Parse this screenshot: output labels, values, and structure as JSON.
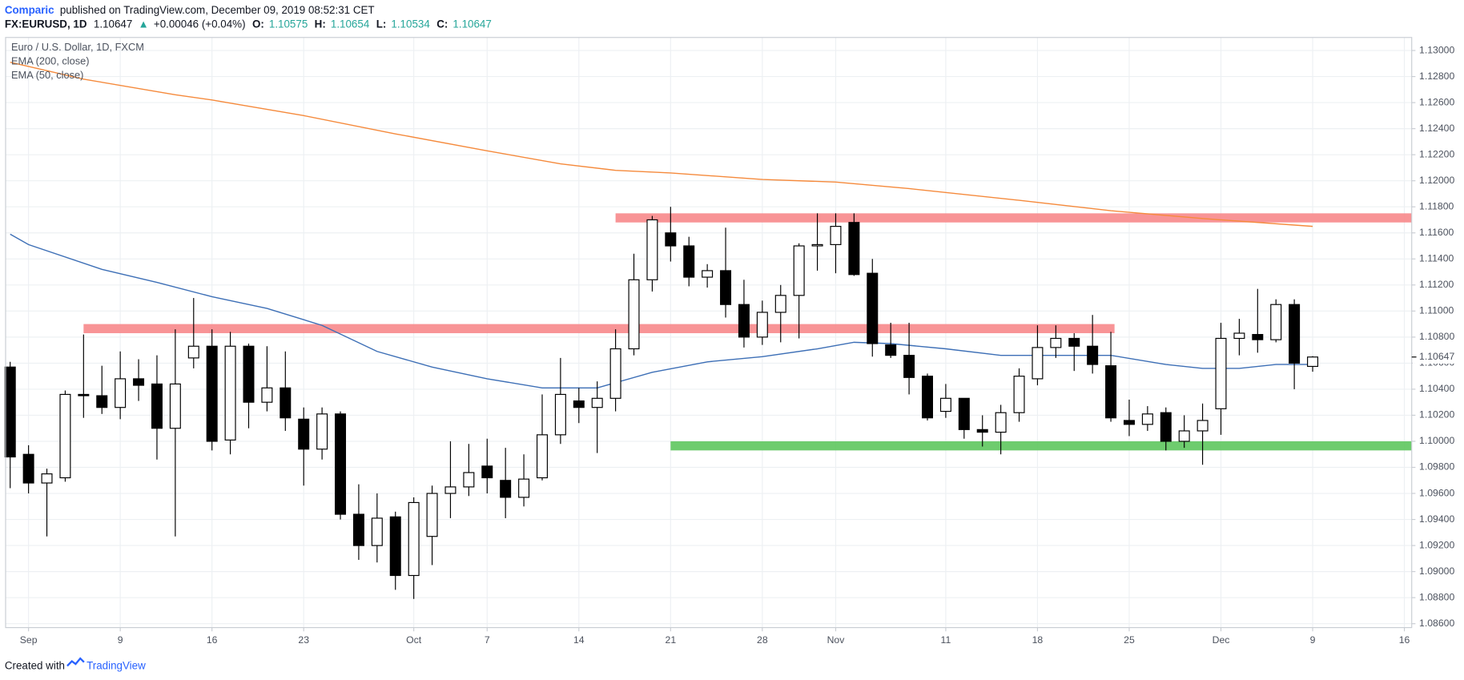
{
  "header": {
    "author": "Comparic",
    "published": "published on TradingView.com, December 09, 2019 08:52:31 CET",
    "symbol": "FX:EURUSD, 1D",
    "change_arrow": "▲",
    "change": "+0.00046 (+0.04%)",
    "open_label": "O:",
    "high_label": "H:",
    "low_label": "L:",
    "close_label": "C:"
  },
  "footer": {
    "created_with": "Created with",
    "brand": "TradingView"
  },
  "chart_data": {
    "type": "candlestick",
    "title": "Euro / U.S. Dollar, 1D, FXCM",
    "up_color": "#ffffff",
    "down_color": "#000000",
    "grid": true,
    "open": [
      1.1057,
      1.099,
      1.0968,
      1.0972,
      1.1036,
      1.1035,
      1.1026,
      1.1048,
      1.1044,
      1.101,
      1.1064,
      1.1073,
      1.1001,
      1.1073,
      1.103,
      1.1041,
      1.1017,
      1.0994,
      1.1021,
      1.0944,
      1.092,
      1.0942,
      1.0897,
      1.0927,
      1.096,
      1.0965,
      1.0981,
      1.097,
      1.0957,
      1.0972,
      1.1005,
      1.1031,
      1.1026,
      1.1033,
      1.1071,
      1.1124,
      1.116,
      1.115,
      1.1126,
      1.1131,
      1.1105,
      1.108,
      1.1099,
      1.1112,
      1.115,
      1.1151,
      1.1168,
      1.1129,
      1.1074,
      1.1066,
      1.105,
      1.1023,
      1.1033,
      1.1009,
      1.1007,
      1.1022,
      1.1048,
      1.1072,
      1.1079,
      1.1073,
      1.1058,
      1.1016,
      1.1013,
      1.1022,
      1.1,
      1.1008,
      1.1025,
      1.1079,
      1.1082,
      1.1078,
      1.1105,
      1.10575
    ],
    "high": [
      1.1061,
      1.0997,
      1.0979,
      1.1039,
      1.1082,
      1.1058,
      1.1069,
      1.1063,
      1.1066,
      1.1086,
      1.111,
      1.1086,
      1.1084,
      1.1075,
      1.1073,
      1.1069,
      1.1026,
      1.1026,
      1.1023,
      1.0967,
      1.096,
      1.0946,
      1.0957,
      1.0966,
      1.1,
      1.0998,
      1.1002,
      1.0995,
      1.099,
      1.1036,
      1.1064,
      1.1041,
      1.1046,
      1.1086,
      1.1144,
      1.1173,
      1.118,
      1.1157,
      1.1136,
      1.1164,
      1.1124,
      1.1108,
      1.112,
      1.1152,
      1.1175,
      1.1175,
      1.1175,
      1.114,
      1.1091,
      1.1091,
      1.1052,
      1.1044,
      1.1033,
      1.102,
      1.1028,
      1.1056,
      1.1089,
      1.1089,
      1.1083,
      1.1097,
      1.1084,
      1.1032,
      1.1027,
      1.1026,
      1.102,
      1.1029,
      1.1091,
      1.1094,
      1.1117,
      1.1109,
      1.1109,
      1.10654
    ],
    "low": [
      1.0964,
      1.096,
      1.0927,
      1.0969,
      1.1018,
      1.1021,
      1.1017,
      1.1031,
      1.0986,
      1.0927,
      1.1056,
      1.0993,
      1.099,
      1.101,
      1.1023,
      1.1008,
      1.0966,
      1.0986,
      1.094,
      1.0909,
      1.0907,
      1.0886,
      1.0879,
      1.0905,
      1.0941,
      1.0958,
      1.096,
      1.0941,
      1.095,
      1.097,
      1.0998,
      1.1014,
      1.0991,
      1.1023,
      1.1066,
      1.1115,
      1.1138,
      1.1119,
      1.1118,
      1.1095,
      1.1072,
      1.1074,
      1.1076,
      1.1079,
      1.1131,
      1.1129,
      1.1127,
      1.1065,
      1.1064,
      1.1036,
      1.1016,
      1.1018,
      1.1002,
      1.0996,
      1.099,
      1.1015,
      1.1043,
      1.1064,
      1.1054,
      1.1052,
      1.1015,
      1.1004,
      1.1008,
      1.0993,
      1.0995,
      1.0982,
      1.1005,
      1.1066,
      1.1068,
      1.1076,
      1.104,
      1.10534
    ],
    "close": [
      1.0988,
      1.0968,
      1.0975,
      1.1036,
      1.1035,
      1.1026,
      1.1048,
      1.1043,
      1.101,
      1.1044,
      1.1073,
      1.1,
      1.1073,
      1.103,
      1.1041,
      1.1018,
      1.0994,
      1.1021,
      1.0944,
      1.092,
      1.0941,
      1.0897,
      1.0953,
      1.096,
      1.0965,
      1.0976,
      1.0972,
      1.0957,
      1.0971,
      1.1005,
      1.1036,
      1.1026,
      1.1033,
      1.1071,
      1.1124,
      1.117,
      1.115,
      1.1126,
      1.1131,
      1.1105,
      1.108,
      1.1099,
      1.1112,
      1.115,
      1.1151,
      1.1165,
      1.1128,
      1.1075,
      1.1066,
      1.1049,
      1.1018,
      1.1033,
      1.1009,
      1.1007,
      1.1022,
      1.105,
      1.1072,
      1.1079,
      1.1073,
      1.1059,
      1.1018,
      1.1013,
      1.1021,
      1.1,
      1.1008,
      1.1016,
      1.1079,
      1.1083,
      1.1078,
      1.1105,
      1.106,
      1.10647
    ],
    "overlays": [
      {
        "name": "EMA (200, close)",
        "color": "#f58a3c",
        "x": [
          0,
          4,
          9,
          11,
          16,
          21,
          26,
          30,
          33,
          36,
          41,
          45,
          49,
          55,
          60,
          65,
          71
        ],
        "values": [
          1.1291,
          1.1278,
          1.1266,
          1.1262,
          1.125,
          1.1236,
          1.1223,
          1.1213,
          1.1208,
          1.1206,
          1.1201,
          1.1199,
          1.1194,
          1.1185,
          1.1177,
          1.1171,
          1.1165
        ]
      },
      {
        "name": "EMA (50, close)",
        "color": "#3d6fb6",
        "x": [
          0,
          1,
          5,
          8,
          11,
          14,
          17,
          20,
          23,
          26,
          29,
          32,
          35,
          38,
          41,
          44,
          46,
          48,
          51,
          54,
          57,
          60,
          63,
          65,
          67,
          69,
          71
        ],
        "values": [
          1.1159,
          1.1151,
          1.1132,
          1.1122,
          1.1111,
          1.1102,
          1.1089,
          1.1069,
          1.1057,
          1.1048,
          1.1041,
          1.1041,
          1.1053,
          1.1061,
          1.1065,
          1.1071,
          1.1076,
          1.1075,
          1.1071,
          1.1066,
          1.1066,
          1.1066,
          1.1059,
          1.1056,
          1.1056,
          1.1059,
          1.1059
        ]
      }
    ],
    "zones": [
      {
        "color": "#f7888b",
        "from": 33,
        "to": 76.4,
        "low": 1.1168,
        "high": 1.1175
      },
      {
        "color": "#f7888b",
        "from": 4,
        "to": 60.2,
        "low": 1.1083,
        "high": 1.109
      },
      {
        "color": "#5ec65e",
        "from": 36,
        "to": 76.4,
        "low": 1.0993,
        "high": 1.1
      }
    ],
    "xlim": [
      -0.25,
      76.4
    ],
    "xticks": [
      {
        "value": 1,
        "label": "Sep"
      },
      {
        "value": 6,
        "label": "9"
      },
      {
        "value": 11,
        "label": "16"
      },
      {
        "value": 16,
        "label": "23"
      },
      {
        "value": 22,
        "label": "Oct"
      },
      {
        "value": 26,
        "label": "7"
      },
      {
        "value": 31,
        "label": "14"
      },
      {
        "value": 36,
        "label": "21"
      },
      {
        "value": 41,
        "label": "28"
      },
      {
        "value": 45,
        "label": "Nov"
      },
      {
        "value": 51,
        "label": "11"
      },
      {
        "value": 56,
        "label": "18"
      },
      {
        "value": 61,
        "label": "25"
      },
      {
        "value": 66,
        "label": "Dec"
      },
      {
        "value": 71,
        "label": "9"
      },
      {
        "value": 76,
        "label": "16"
      }
    ],
    "ylim": [
      1.0857,
      1.131
    ],
    "yticks": [
      {
        "value": 1.086,
        "label": "1.08600"
      },
      {
        "value": 1.088,
        "label": "1.08800"
      },
      {
        "value": 1.09,
        "label": "1.09000"
      },
      {
        "value": 1.092,
        "label": "1.09200"
      },
      {
        "value": 1.094,
        "label": "1.09400"
      },
      {
        "value": 1.096,
        "label": "1.09600"
      },
      {
        "value": 1.098,
        "label": "1.09800"
      },
      {
        "value": 1.1,
        "label": "1.10000"
      },
      {
        "value": 1.102,
        "label": "1.10200"
      },
      {
        "value": 1.104,
        "label": "1.10400"
      },
      {
        "value": 1.106,
        "label": "1.10600"
      },
      {
        "value": 1.108,
        "label": "1.10800"
      },
      {
        "value": 1.11,
        "label": "1.11000"
      },
      {
        "value": 1.112,
        "label": "1.11200"
      },
      {
        "value": 1.114,
        "label": "1.11400"
      },
      {
        "value": 1.116,
        "label": "1.11600"
      },
      {
        "value": 1.118,
        "label": "1.11800"
      },
      {
        "value": 1.12,
        "label": "1.12000"
      },
      {
        "value": 1.122,
        "label": "1.12200"
      },
      {
        "value": 1.124,
        "label": "1.12400"
      },
      {
        "value": 1.126,
        "label": "1.12600"
      },
      {
        "value": 1.128,
        "label": "1.12800"
      },
      {
        "value": 1.13,
        "label": "1.13000"
      }
    ]
  }
}
